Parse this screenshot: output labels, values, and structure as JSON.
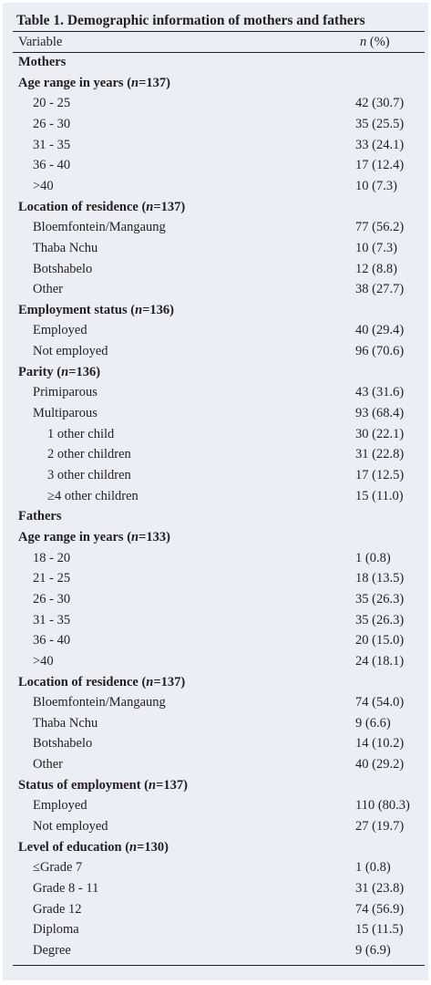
{
  "table": {
    "title": "Table 1. Demographic information of mothers and fathers",
    "columns": [
      "Variable",
      "n (%)"
    ],
    "sections": [
      {
        "title": "Mothers",
        "groups": [
          {
            "title": "Age range in years (n=137)",
            "items": [
              {
                "label": "20 - 25",
                "value": "42 (30.7)"
              },
              {
                "label": "26 - 30",
                "value": "35 (25.5)"
              },
              {
                "label": "31 - 35",
                "value": "33 (24.1)"
              },
              {
                "label": "36 - 40",
                "value": "17 (12.4)"
              },
              {
                "label": ">40",
                "value": "10 (7.3)"
              }
            ]
          },
          {
            "title": "Location of residence (n=137)",
            "items": [
              {
                "label": "Bloemfontein/Mangaung",
                "value": "77 (56.2)"
              },
              {
                "label": "Thaba Nchu",
                "value": "10 (7.3)"
              },
              {
                "label": "Botshabelo",
                "value": "12 (8.8)"
              },
              {
                "label": "Other",
                "value": "38 (27.7)"
              }
            ]
          },
          {
            "title": "Employment status (n=136)",
            "items": [
              {
                "label": "Employed",
                "value": "40 (29.4)"
              },
              {
                "label": "Not employed",
                "value": "96 (70.6)"
              }
            ]
          },
          {
            "title": "Parity (n=136)",
            "items": [
              {
                "label": "Primiparous",
                "value": "43 (31.6)"
              },
              {
                "label": "Multiparous",
                "value": "93 (68.4)",
                "items": [
                  {
                    "label": "1 other child",
                    "value": "30 (22.1)"
                  },
                  {
                    "label": "2 other children",
                    "value": "31 (22.8)"
                  },
                  {
                    "label": "3 other children",
                    "value": "17 (12.5)"
                  },
                  {
                    "label": "≥4 other children",
                    "value": "15 (11.0)"
                  }
                ]
              }
            ]
          }
        ]
      },
      {
        "title": "Fathers",
        "groups": [
          {
            "title": "Age range in years (n=133)",
            "items": [
              {
                "label": "18 - 20",
                "value": "1 (0.8)"
              },
              {
                "label": "21 - 25",
                "value": "18 (13.5)"
              },
              {
                "label": "26 - 30",
                "value": "35 (26.3)"
              },
              {
                "label": "31 - 35",
                "value": "35 (26.3)"
              },
              {
                "label": "36 - 40",
                "value": "20 (15.0)"
              },
              {
                "label": ">40",
                "value": "24 (18.1)"
              }
            ]
          },
          {
            "title": "Location of residence (n=137)",
            "items": [
              {
                "label": "Bloemfontein/Mangaung",
                "value": "74 (54.0)"
              },
              {
                "label": "Thaba Nchu",
                "value": "9 (6.6)"
              },
              {
                "label": "Botshabelo",
                "value": "14 (10.2)"
              },
              {
                "label": "Other",
                "value": "40 (29.2)"
              }
            ]
          },
          {
            "title": "Status of employment (n=137)",
            "items": [
              {
                "label": "Employed",
                "value": "110 (80.3)"
              },
              {
                "label": "Not employed",
                "value": "27 (19.7)"
              }
            ]
          },
          {
            "title": "Level of education (n=130)",
            "items": [
              {
                "label": "≤Grade 7",
                "value": "1 (0.8)"
              },
              {
                "label": "Grade 8 - 11",
                "value": "31 (23.8)"
              },
              {
                "label": "Grade 12",
                "value": "74 (56.9)"
              },
              {
                "label": "Diploma",
                "value": "15 (11.5)"
              },
              {
                "label": "Degree",
                "value": "9 (6.9)"
              }
            ]
          }
        ]
      }
    ]
  }
}
